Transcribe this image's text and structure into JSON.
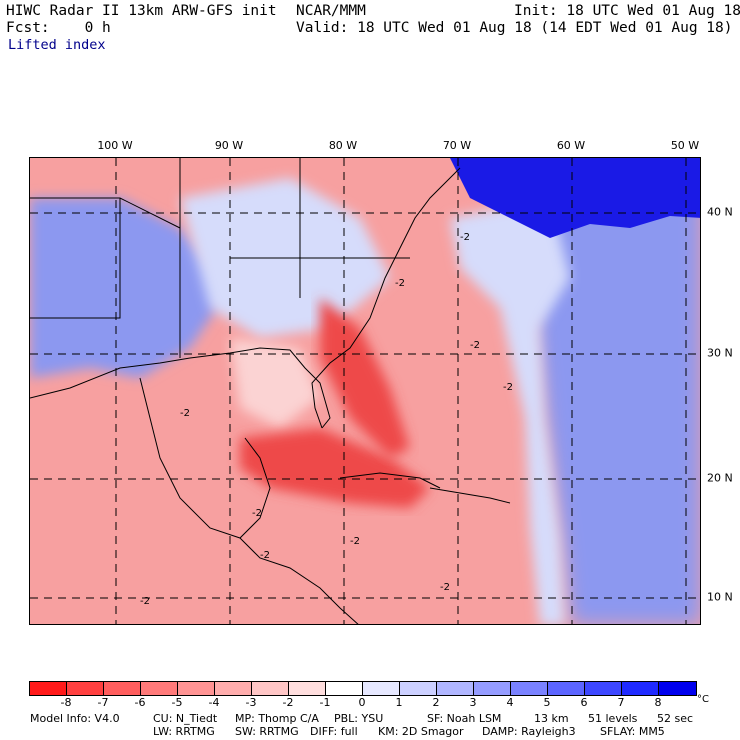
{
  "header": {
    "model_title": "HIWC Radar II 13km ARW-GFS init",
    "org": "NCAR/MMM",
    "init": "Init: 18 UTC Wed 01 Aug 18",
    "fcst": "Fcst:    0 h",
    "valid": "Valid: 18 UTC Wed 01 Aug 18 (14 EDT Wed 01 Aug 18)",
    "field": "Lifted index"
  },
  "map": {
    "lon_labels": [
      "100 W",
      "90 W",
      "80 W",
      "70 W",
      "60 W",
      "50 W"
    ],
    "lat_labels": [
      "40 N",
      "30 N",
      "20 N",
      "10 N"
    ],
    "contour_labels": [
      "-2",
      "-2",
      "-2",
      "-2",
      "-2",
      "-2",
      "-2",
      "-2",
      "-2",
      "-2"
    ],
    "colors": {
      "strong_negative": "#ee4a4a",
      "negative": "#f7a0a0",
      "weak_negative": "#fbd3d3",
      "neutral": "#ffffff",
      "weak_positive": "#d6dcfb",
      "positive": "#8c98f0",
      "strong_positive": "#1a1ae6"
    }
  },
  "colorbar": {
    "ticks": [
      "-8",
      "-7",
      "-6",
      "-5",
      "-4",
      "-3",
      "-2",
      "-1",
      "0",
      "1",
      "2",
      "3",
      "4",
      "5",
      "6",
      "7",
      "8"
    ],
    "unit": "°C",
    "colors": [
      "#ff1a1a",
      "#ff4040",
      "#ff5e5e",
      "#ff7a7a",
      "#ff9494",
      "#ffadad",
      "#ffc6c6",
      "#ffdede",
      "#ffffff",
      "#e6e8ff",
      "#ccd0ff",
      "#b0b6ff",
      "#959cff",
      "#7a82ff",
      "#5c65ff",
      "#3d47ff",
      "#1f2aff",
      "#0000ee"
    ]
  },
  "footer": {
    "line1_left": "Model Info: V4.0",
    "line1_cu": "CU: N_Tiedt",
    "line1_mp": "MP: Thomp C/A",
    "line1_pbl": "PBL: YSU",
    "line1_sf": "SF: Noah LSM",
    "line1_res": "13 km",
    "line1_levels": "51 levels",
    "line1_dt": "52 sec",
    "line2_lw": "LW: RRTMG",
    "line2_sw": "SW: RRTMG",
    "line2_diff": "DIFF: full",
    "line2_km": "KM: 2D Smagor",
    "line2_damp": "DAMP: Rayleigh3",
    "line2_sflay": "SFLAY: MM5"
  }
}
